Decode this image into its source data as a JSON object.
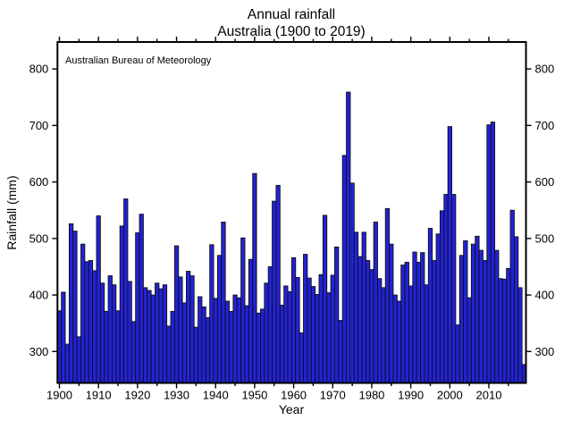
{
  "title": {
    "line1": "Annual rainfall",
    "line2": "Australia (1900 to 2019)"
  },
  "annotation": "Australian Bureau of Meteorology",
  "axes": {
    "x_label": "Year",
    "y_label": "Rainfall (mm)",
    "y_ticks": [
      300,
      400,
      500,
      600,
      700,
      800
    ],
    "x_major_ticks": [
      1900,
      1910,
      1920,
      1930,
      1940,
      1950,
      1960,
      1970,
      1980,
      1990,
      2000,
      2010
    ],
    "x_minor_step": 5,
    "y_axis_range": [
      244,
      848
    ]
  },
  "colors": {
    "background": "#ffffff",
    "bar_fill": "#2222d8",
    "bar_edge": "#101010",
    "axis": "#000000"
  },
  "chart_data": {
    "type": "bar",
    "title": "Annual rainfall",
    "subtitle": "Australia (1900 to 2019)",
    "xlabel": "Year",
    "ylabel": "Rainfall (mm)",
    "source_label": "Australian Bureau of Meteorology",
    "ylim": [
      244,
      848
    ],
    "grid": false,
    "start_year": 1900,
    "end_year": 2019,
    "years": [
      1900,
      1901,
      1902,
      1903,
      1904,
      1905,
      1906,
      1907,
      1908,
      1909,
      1910,
      1911,
      1912,
      1913,
      1914,
      1915,
      1916,
      1917,
      1918,
      1919,
      1920,
      1921,
      1922,
      1923,
      1924,
      1925,
      1926,
      1927,
      1928,
      1929,
      1930,
      1931,
      1932,
      1933,
      1934,
      1935,
      1936,
      1937,
      1938,
      1939,
      1940,
      1941,
      1942,
      1943,
      1944,
      1945,
      1946,
      1947,
      1948,
      1949,
      1950,
      1951,
      1952,
      1953,
      1954,
      1955,
      1956,
      1957,
      1958,
      1959,
      1960,
      1961,
      1962,
      1963,
      1964,
      1965,
      1966,
      1967,
      1968,
      1969,
      1970,
      1971,
      1972,
      1973,
      1974,
      1975,
      1976,
      1977,
      1978,
      1979,
      1980,
      1981,
      1982,
      1983,
      1984,
      1985,
      1986,
      1987,
      1988,
      1989,
      1990,
      1991,
      1992,
      1993,
      1994,
      1995,
      1996,
      1997,
      1998,
      1999,
      2000,
      2001,
      2002,
      2003,
      2004,
      2005,
      2006,
      2007,
      2008,
      2009,
      2010,
      2011,
      2012,
      2013,
      2014,
      2015,
      2016,
      2017,
      2018,
      2019
    ],
    "values": [
      372,
      405,
      313,
      526,
      513,
      326,
      490,
      459,
      461,
      443,
      540,
      421,
      371,
      434,
      418,
      372,
      522,
      570,
      424,
      353,
      510,
      543,
      413,
      408,
      400,
      421,
      411,
      418,
      345,
      371,
      487,
      432,
      386,
      442,
      434,
      343,
      397,
      379,
      360,
      489,
      394,
      470,
      529,
      389,
      371,
      400,
      395,
      501,
      381,
      463,
      615,
      368,
      375,
      421,
      450,
      566,
      594,
      382,
      416,
      406,
      466,
      431,
      333,
      472,
      430,
      415,
      401,
      436,
      541,
      404,
      435,
      485,
      355,
      647,
      759,
      598,
      511,
      468,
      511,
      461,
      445,
      529,
      429,
      413,
      553,
      490,
      400,
      389,
      453,
      458,
      416,
      476,
      458,
      475,
      418,
      518,
      461,
      508,
      549,
      578,
      698,
      578,
      347,
      470,
      496,
      395,
      490,
      504,
      479,
      461,
      701,
      706,
      479,
      429,
      428,
      447,
      550,
      503,
      413,
      277
    ]
  }
}
